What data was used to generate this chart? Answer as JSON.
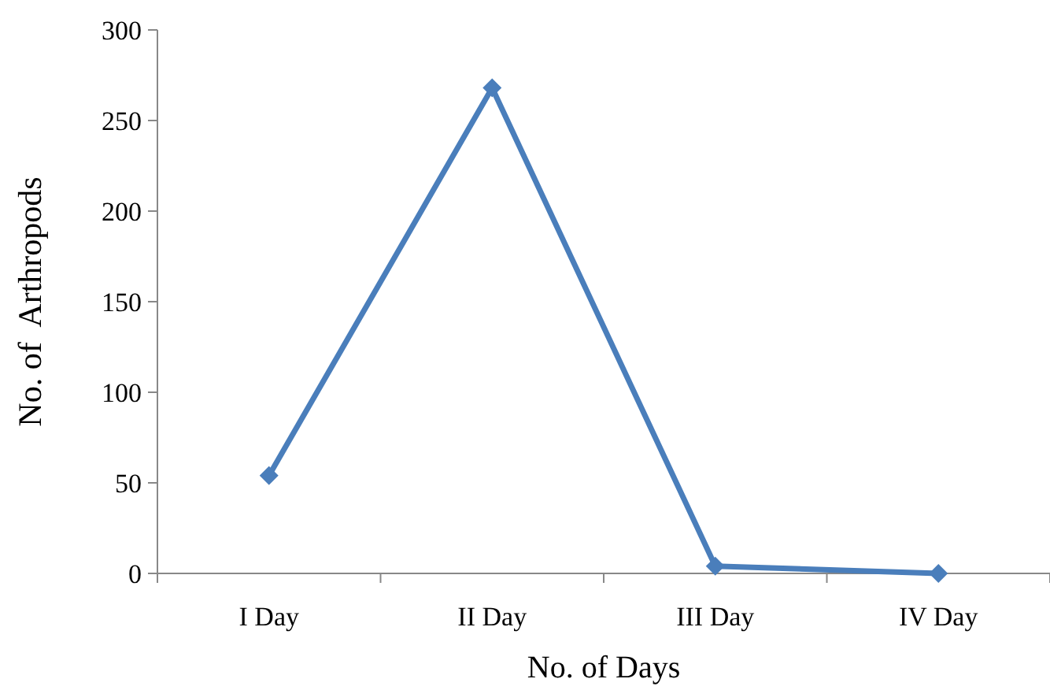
{
  "chart_data": {
    "type": "line",
    "xlabel": "No. of Days",
    "ylabel": "No. of  Arthropods",
    "categories": [
      "I Day",
      "II Day",
      "III Day",
      "IV Day"
    ],
    "series": [
      {
        "color": "#4a7ebb",
        "values": [
          54,
          268,
          4,
          0
        ]
      }
    ],
    "ylim": [
      0,
      300
    ],
    "yticks": [
      0,
      50,
      100,
      150,
      200,
      250,
      300
    ],
    "grid": false,
    "marker": "diamond",
    "line_style": "solid"
  }
}
